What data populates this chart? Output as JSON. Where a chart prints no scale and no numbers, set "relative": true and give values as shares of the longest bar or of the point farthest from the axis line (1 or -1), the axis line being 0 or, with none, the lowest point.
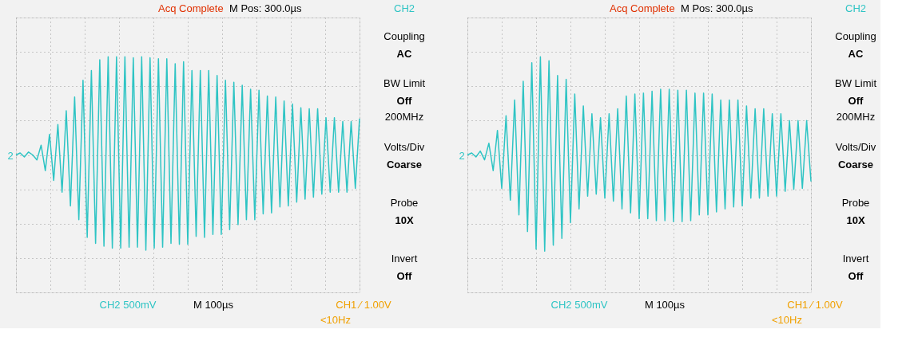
{
  "chart_data": [
    {
      "type": "line",
      "relative": true,
      "grid": true,
      "categories": [
        null,
        null,
        null,
        null,
        null,
        null,
        null,
        null,
        null,
        null,
        null,
        null,
        null,
        null,
        null,
        null,
        null,
        null,
        null,
        null,
        null,
        null,
        null,
        null,
        null,
        null,
        null,
        null,
        null,
        null,
        null,
        null,
        null,
        null,
        null,
        null,
        null,
        null,
        null,
        null,
        null,
        null,
        null,
        null,
        null,
        null,
        null,
        null,
        null,
        null,
        null,
        null,
        null,
        null,
        null,
        null,
        null,
        null,
        null,
        null,
        null,
        null,
        null,
        null,
        null,
        null,
        null,
        null,
        null,
        null,
        null,
        null,
        null,
        null,
        null,
        null,
        null,
        null,
        null,
        null,
        null,
        null,
        null
      ],
      "series": [
        {
          "color": "#2ec4c4",
          "values": [
            0,
            0.02,
            -0.02,
            0.03,
            0,
            -0.05,
            0.1,
            -0.16,
            0.21,
            -0.26,
            0.31,
            -0.38,
            0.45,
            -0.52,
            0.59,
            -0.66,
            0.76,
            -0.84,
            0.86,
            -0.9,
            0.97,
            -0.93,
            1,
            -0.95,
            1,
            -0.95,
            1,
            -0.94,
            0.99,
            -0.94,
            1,
            -0.97,
            0.99,
            -0.95,
            0.98,
            -0.94,
            0.98,
            -0.9,
            0.93,
            -0.91,
            0.95,
            -0.91,
            0.86,
            -0.83,
            0.86,
            -0.84,
            0.86,
            -0.81,
            0.81,
            -0.81,
            0.76,
            -0.76,
            0.74,
            -0.71,
            0.71,
            -0.66,
            0.67,
            -0.66,
            0.66,
            -0.6,
            0.6,
            -0.59,
            0.59,
            -0.53,
            0.55,
            -0.52,
            0.52,
            -0.48,
            0.48,
            -0.45,
            0.47,
            -0.43,
            0.47,
            -0.4,
            0.38,
            -0.38,
            0.38,
            -0.38,
            0.34,
            -0.38,
            0.34,
            -0.34,
            0.37
          ]
        }
      ],
      "annotations": [
        "Acq Complete",
        "M Pos: 300.0µs",
        "CH2",
        "Coupling",
        "AC",
        "BW Limit",
        "Off",
        "200MHz",
        "Volts/Div",
        "Coarse",
        "Probe",
        "10X",
        "Invert",
        "Off",
        "CH2  500mV",
        "M 100µs",
        "CH1 ∕ 1.00V",
        "<10Hz",
        "2"
      ]
    },
    {
      "type": "line",
      "relative": true,
      "grid": true,
      "categories": [
        null,
        null,
        null,
        null,
        null,
        null,
        null,
        null,
        null,
        null,
        null,
        null,
        null,
        null,
        null,
        null,
        null,
        null,
        null,
        null,
        null,
        null,
        null,
        null,
        null,
        null,
        null,
        null,
        null,
        null,
        null,
        null,
        null,
        null,
        null,
        null,
        null,
        null,
        null,
        null,
        null,
        null,
        null,
        null,
        null,
        null,
        null,
        null,
        null,
        null,
        null,
        null,
        null,
        null,
        null,
        null,
        null,
        null,
        null,
        null,
        null,
        null,
        null,
        null,
        null,
        null,
        null,
        null,
        null,
        null,
        null,
        null,
        null,
        null,
        null,
        null,
        null,
        null,
        null,
        null,
        null
      ],
      "series": [
        {
          "color": "#2ec4c4",
          "values": [
            0,
            0.02,
            -0.02,
            0.04,
            -0.05,
            0.12,
            -0.16,
            0.25,
            -0.34,
            0.4,
            -0.46,
            0.56,
            -0.61,
            0.75,
            -0.78,
            0.94,
            -0.96,
            1,
            -0.98,
            0.96,
            -0.92,
            0.81,
            -0.85,
            0.77,
            -0.69,
            0.62,
            -0.55,
            0.5,
            -0.42,
            0.42,
            -0.4,
            0.38,
            -0.44,
            0.42,
            -0.47,
            0.47,
            -0.55,
            0.6,
            -0.59,
            0.62,
            -0.65,
            0.63,
            -0.65,
            0.65,
            -0.67,
            0.67,
            -0.67,
            0.67,
            -0.68,
            0.66,
            -0.68,
            0.66,
            -0.67,
            0.63,
            -0.61,
            0.63,
            -0.61,
            0.62,
            -0.58,
            0.56,
            -0.55,
            0.56,
            -0.53,
            0.56,
            -0.52,
            0.5,
            -0.44,
            0.47,
            -0.44,
            0.47,
            -0.42,
            0.42,
            -0.42,
            0.42,
            -0.37,
            0.35,
            -0.35,
            0.35,
            -0.34,
            0.35,
            -0.27
          ]
        }
      ],
      "annotations": [
        "Acq Complete",
        "M Pos: 300.0µs",
        "CH2",
        "Coupling",
        "AC",
        "BW Limit",
        "Off",
        "200MHz",
        "Volts/Div",
        "Coarse",
        "Probe",
        "10X",
        "Invert",
        "Off",
        "CH2  500mV",
        "M 100µs",
        "CH1 ∕ 1.00V",
        "<10Hz",
        "2"
      ]
    }
  ]
}
